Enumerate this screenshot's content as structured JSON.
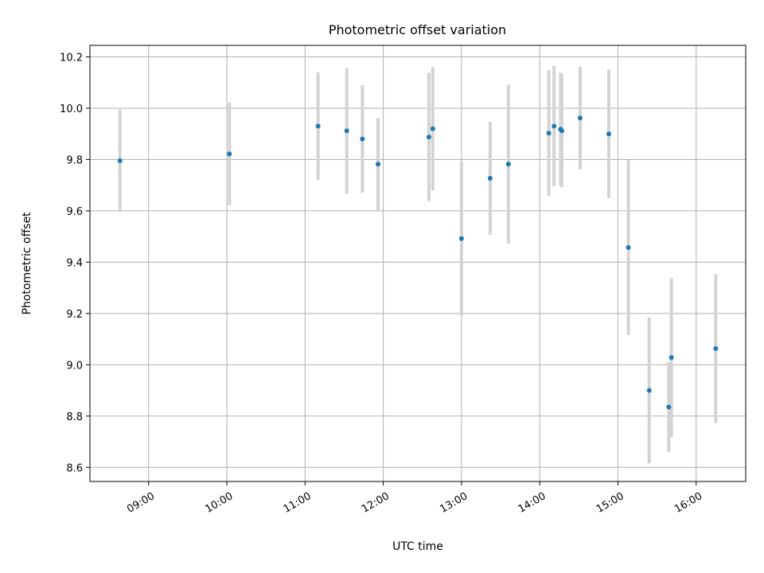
{
  "chart_data": {
    "type": "scatter",
    "title": "Photometric offset variation",
    "xlabel": "UTC time",
    "ylabel": "Photometric offset",
    "xlim": [
      "08:15",
      "16:38"
    ],
    "ylim": [
      8.545,
      10.245
    ],
    "xticks": [
      "09:00",
      "10:00",
      "11:00",
      "12:00",
      "13:00",
      "14:00",
      "15:00",
      "16:00"
    ],
    "yticks": [
      "8.6",
      "8.8",
      "9.0",
      "9.2",
      "9.4",
      "9.6",
      "9.8",
      "10.0",
      "10.2"
    ],
    "grid": true,
    "marker_color": "#1f77b4",
    "errorbar_color": "#d3d3d3",
    "points": [
      {
        "x": "08:38",
        "y": 9.795,
        "err": 0.2
      },
      {
        "x": "10:02",
        "y": 9.822,
        "err": 0.2
      },
      {
        "x": "11:10",
        "y": 9.93,
        "err": 0.21
      },
      {
        "x": "11:32",
        "y": 9.912,
        "err": 0.245
      },
      {
        "x": "11:44",
        "y": 9.88,
        "err": 0.21
      },
      {
        "x": "11:56",
        "y": 9.782,
        "err": 0.18
      },
      {
        "x": "12:35",
        "y": 9.888,
        "err": 0.25
      },
      {
        "x": "12:38",
        "y": 9.92,
        "err": 0.24
      },
      {
        "x": "13:00",
        "y": 9.492,
        "err": 0.3
      },
      {
        "x": "13:22",
        "y": 9.727,
        "err": 0.22
      },
      {
        "x": "13:36",
        "y": 9.782,
        "err": 0.31
      },
      {
        "x": "14:07",
        "y": 9.903,
        "err": 0.245
      },
      {
        "x": "14:11",
        "y": 9.93,
        "err": 0.235
      },
      {
        "x": "14:16",
        "y": 9.918,
        "err": 0.22
      },
      {
        "x": "14:17",
        "y": 9.912,
        "err": 0.22
      },
      {
        "x": "14:31",
        "y": 9.962,
        "err": 0.2
      },
      {
        "x": "14:53",
        "y": 9.9,
        "err": 0.25
      },
      {
        "x": "15:08",
        "y": 9.457,
        "err": 0.34
      },
      {
        "x": "15:24",
        "y": 8.9,
        "err": 0.285
      },
      {
        "x": "15:39",
        "y": 8.835,
        "err": 0.175
      },
      {
        "x": "15:41",
        "y": 9.028,
        "err": 0.31
      },
      {
        "x": "16:15",
        "y": 9.063,
        "err": 0.29
      }
    ]
  }
}
